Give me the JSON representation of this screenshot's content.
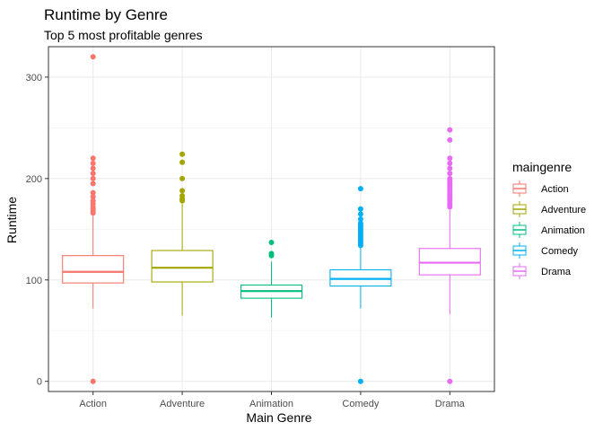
{
  "chart_data": {
    "type": "boxplot",
    "title": "Runtime by Genre",
    "subtitle": "Top 5 most profitable genres",
    "xlabel": "Main Genre",
    "ylabel": "Runtime",
    "ylim": [
      -10,
      330
    ],
    "yticks": [
      0,
      100,
      200,
      300
    ],
    "grid": true,
    "legend_title": "maingenre",
    "legend_position": "right",
    "categories": [
      "Action",
      "Adventure",
      "Animation",
      "Comedy",
      "Drama"
    ],
    "series": [
      {
        "name": "Action",
        "color": "#F8766D",
        "whisker_low": 72,
        "q1": 97,
        "median": 108,
        "q3": 124,
        "whisker_high": 164,
        "outliers": [
          0,
          166,
          168,
          170,
          172,
          175,
          178,
          182,
          186,
          195,
          200,
          205,
          210,
          215,
          220,
          320
        ]
      },
      {
        "name": "Adventure",
        "color": "#A3A500",
        "whisker_low": 65,
        "q1": 98,
        "median": 112,
        "q3": 129,
        "whisker_high": 175,
        "outliers": [
          178,
          180,
          183,
          188,
          200,
          216,
          224
        ]
      },
      {
        "name": "Animation",
        "color": "#00BF7D",
        "whisker_low": 63,
        "q1": 82,
        "median": 89,
        "q3": 95,
        "whisker_high": 118,
        "outliers": [
          124,
          126,
          137
        ]
      },
      {
        "name": "Comedy",
        "color": "#00B0F6",
        "whisker_low": 72,
        "q1": 94,
        "median": 101,
        "q3": 110,
        "whisker_high": 133,
        "outliers": [
          0,
          134,
          136,
          138,
          140,
          142,
          144,
          146,
          148,
          150,
          152,
          154,
          156,
          160,
          165,
          170,
          190
        ]
      },
      {
        "name": "Drama",
        "color": "#E76BF3",
        "whisker_low": 66,
        "q1": 105,
        "median": 117,
        "q3": 131,
        "whisker_high": 169,
        "outliers": [
          0,
          172,
          174,
          176,
          178,
          180,
          182,
          184,
          186,
          188,
          190,
          192,
          194,
          196,
          198,
          200,
          205,
          210,
          215,
          220,
          238,
          248
        ]
      }
    ]
  }
}
